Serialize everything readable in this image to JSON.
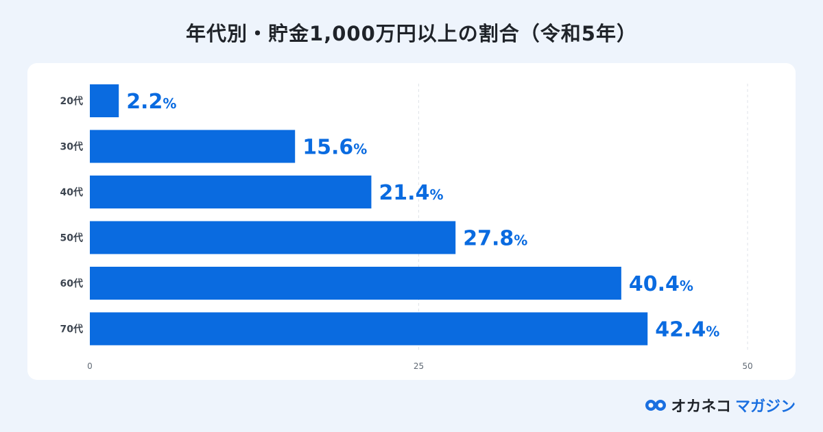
{
  "title": "年代別・貯金1,000万円以上の割合（令和5年）",
  "chart_data": {
    "type": "bar",
    "orientation": "horizontal",
    "categories": [
      "20代",
      "30代",
      "40代",
      "50代",
      "60代",
      "70代"
    ],
    "values": [
      2.2,
      15.6,
      21.4,
      27.8,
      40.4,
      42.4
    ],
    "value_suffix": "%",
    "xlim": [
      0,
      50
    ],
    "x_ticks": [
      "0",
      "25",
      "50"
    ],
    "grid": true,
    "bar_color": "#0a6be0",
    "label_color": "#0a6be0"
  },
  "logo": {
    "main": "オカネコ",
    "sub": "マガジン"
  }
}
